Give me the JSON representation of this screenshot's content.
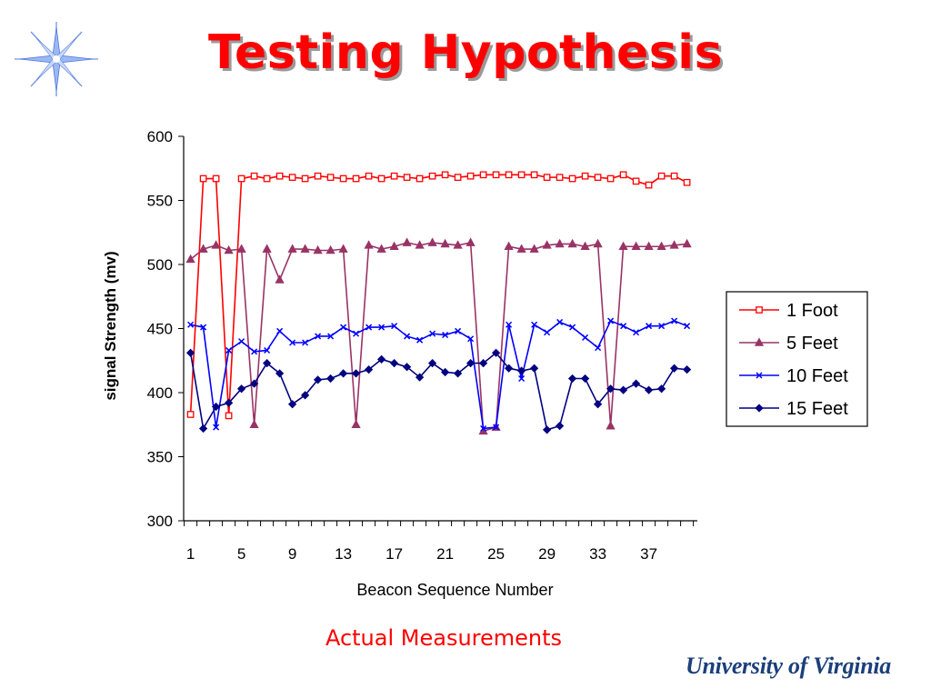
{
  "slide": {
    "title": "Testing Hypothesis",
    "caption": "Actual Measurements",
    "logo_text": "University of Virginia",
    "title_color": "#ff0000",
    "logo_color": "#1b3f7a"
  },
  "chart_data": {
    "type": "line",
    "title": "",
    "xlabel": "Beacon Sequence Number",
    "ylabel": "signal Strength (mv)",
    "ylim": [
      300,
      600
    ],
    "yticks": [
      300,
      350,
      400,
      450,
      500,
      550,
      600
    ],
    "xticks": [
      1,
      5,
      9,
      13,
      17,
      21,
      25,
      29,
      33,
      37
    ],
    "xlim": [
      1,
      40
    ],
    "grid": false,
    "legend_position": "right",
    "x": [
      1,
      2,
      3,
      4,
      5,
      6,
      7,
      8,
      9,
      10,
      11,
      12,
      13,
      14,
      15,
      16,
      17,
      18,
      19,
      20,
      21,
      22,
      23,
      24,
      25,
      26,
      27,
      28,
      29,
      30,
      31,
      32,
      33,
      34,
      35,
      36,
      37,
      38,
      39,
      40
    ],
    "series": [
      {
        "name": "1 Foot",
        "color": "#ff0000",
        "marker": "square-open",
        "values": [
          383,
          567,
          567,
          382,
          567,
          569,
          567,
          569,
          568,
          567,
          569,
          568,
          567,
          567,
          569,
          567,
          569,
          568,
          567,
          569,
          570,
          568,
          569,
          570,
          570,
          570,
          570,
          570,
          568,
          568,
          567,
          569,
          568,
          567,
          570,
          565,
          562,
          569,
          569,
          564
        ]
      },
      {
        "name": "5 Feet",
        "color": "#993366",
        "marker": "triangle",
        "values": [
          504,
          512,
          515,
          511,
          512,
          375,
          512,
          488,
          512,
          512,
          511,
          511,
          512,
          375,
          515,
          512,
          514,
          517,
          515,
          517,
          516,
          515,
          517,
          370,
          373,
          514,
          512,
          512,
          515,
          516,
          516,
          514,
          516,
          374,
          514,
          514,
          514,
          514,
          515,
          516
        ]
      },
      {
        "name": "10 Feet",
        "color": "#0000ff",
        "marker": "x",
        "values": [
          453,
          451,
          373,
          433,
          440,
          432,
          433,
          448,
          439,
          439,
          444,
          444,
          451,
          446,
          451,
          451,
          452,
          444,
          441,
          446,
          445,
          448,
          442,
          372,
          373,
          453,
          411,
          453,
          447,
          455,
          451,
          443,
          435,
          456,
          452,
          447,
          452,
          452,
          456,
          452
        ]
      },
      {
        "name": "15 Feet",
        "color": "#000080",
        "marker": "diamond",
        "values": [
          431,
          372,
          389,
          392,
          403,
          407,
          423,
          415,
          391,
          398,
          410,
          411,
          415,
          415,
          418,
          426,
          423,
          420,
          412,
          423,
          416,
          415,
          423,
          423,
          431,
          419,
          417,
          419,
          371,
          374,
          411,
          411,
          391,
          403,
          402,
          407,
          402,
          403,
          419,
          418
        ]
      }
    ]
  }
}
